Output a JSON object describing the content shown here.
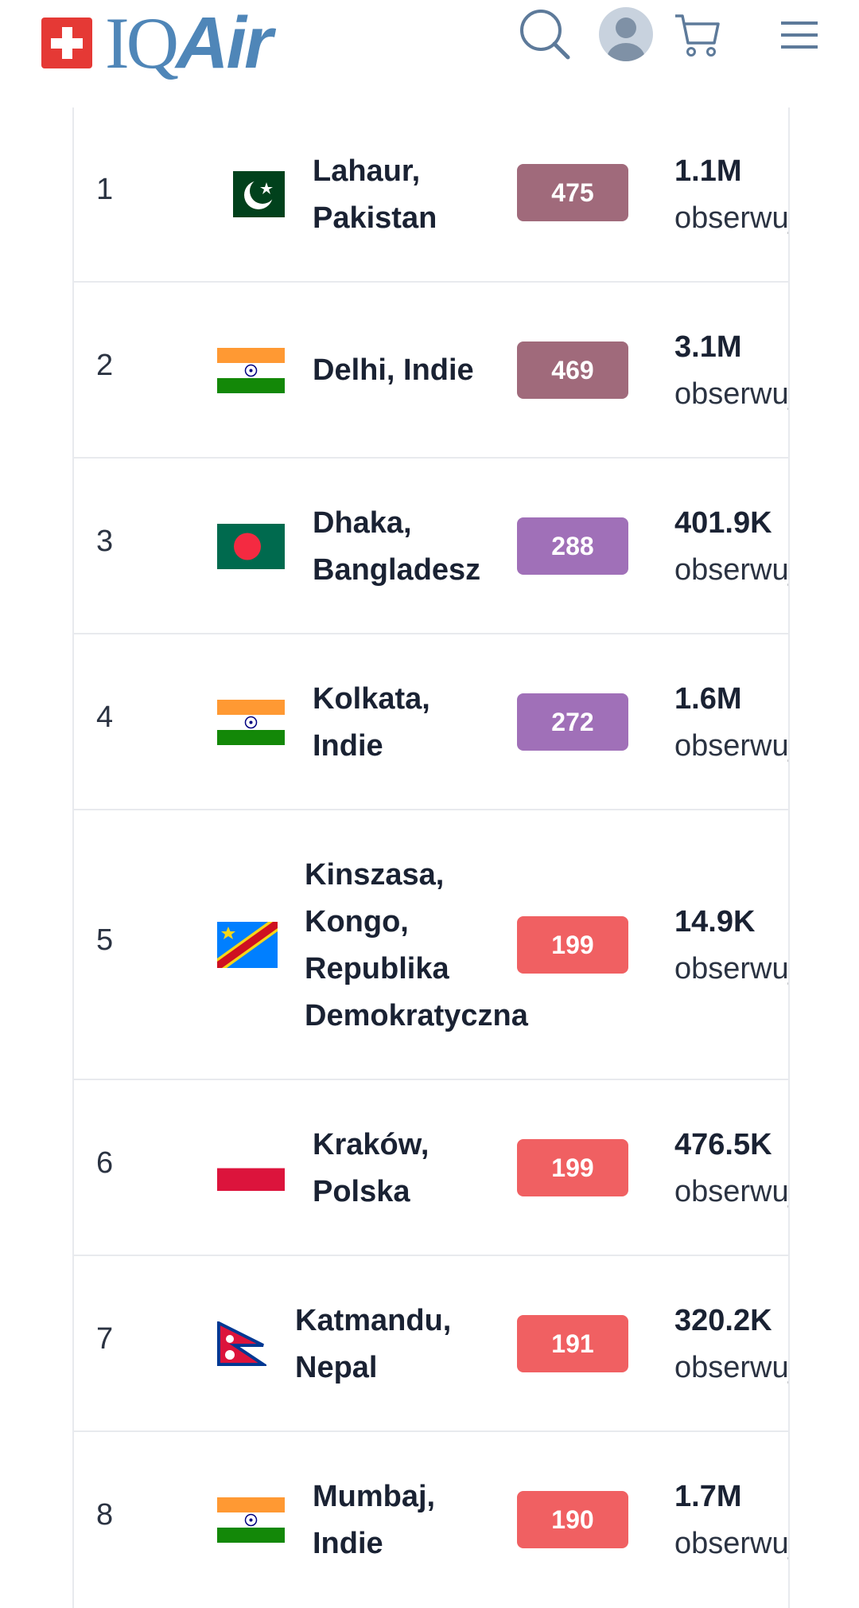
{
  "header": {
    "logo_text": "IQAir"
  },
  "obs_label": "obserwujących",
  "colors": {
    "brand": "#4f86b8",
    "swiss": "#e53935",
    "maroon": "#a06a7b",
    "purple": "#a070b8",
    "red": "#f06062"
  },
  "rows": [
    {
      "rank": "1",
      "city": [
        "Lahaur,",
        "Pakistan"
      ],
      "aqi": "475",
      "followers": "1.1M",
      "flag": "pakistan-flag-icon"
    },
    {
      "rank": "2",
      "city": [
        "Delhi, Indie"
      ],
      "aqi": "469",
      "followers": "3.1M",
      "flag": "india-flag-icon"
    },
    {
      "rank": "3",
      "city": [
        "Dhaka,",
        "Bangladesz"
      ],
      "aqi": "288",
      "followers": "401.9K",
      "flag": "bangladesh-flag-icon"
    },
    {
      "rank": "4",
      "city": [
        "Kolkata,",
        "Indie"
      ],
      "aqi": "272",
      "followers": "1.6M",
      "flag": "india-flag-icon"
    },
    {
      "rank": "5",
      "city": [
        "Kinszasa,",
        "Kongo,",
        "Republika",
        "Demokratyczna"
      ],
      "aqi": "199",
      "followers": "14.9K",
      "flag": "dr-congo-flag-icon"
    },
    {
      "rank": "6",
      "city": [
        "Kraków,",
        "Polska"
      ],
      "aqi": "199",
      "followers": "476.5K",
      "flag": "poland-flag-icon"
    },
    {
      "rank": "7",
      "city": [
        "Katmandu,",
        "Nepal"
      ],
      "aqi": "191",
      "followers": "320.2K",
      "flag": "nepal-flag-icon"
    },
    {
      "rank": "8",
      "city": [
        "Mumbaj,",
        "Indie"
      ],
      "aqi": "190",
      "followers": "1.7M",
      "flag": "india-flag-icon"
    }
  ]
}
